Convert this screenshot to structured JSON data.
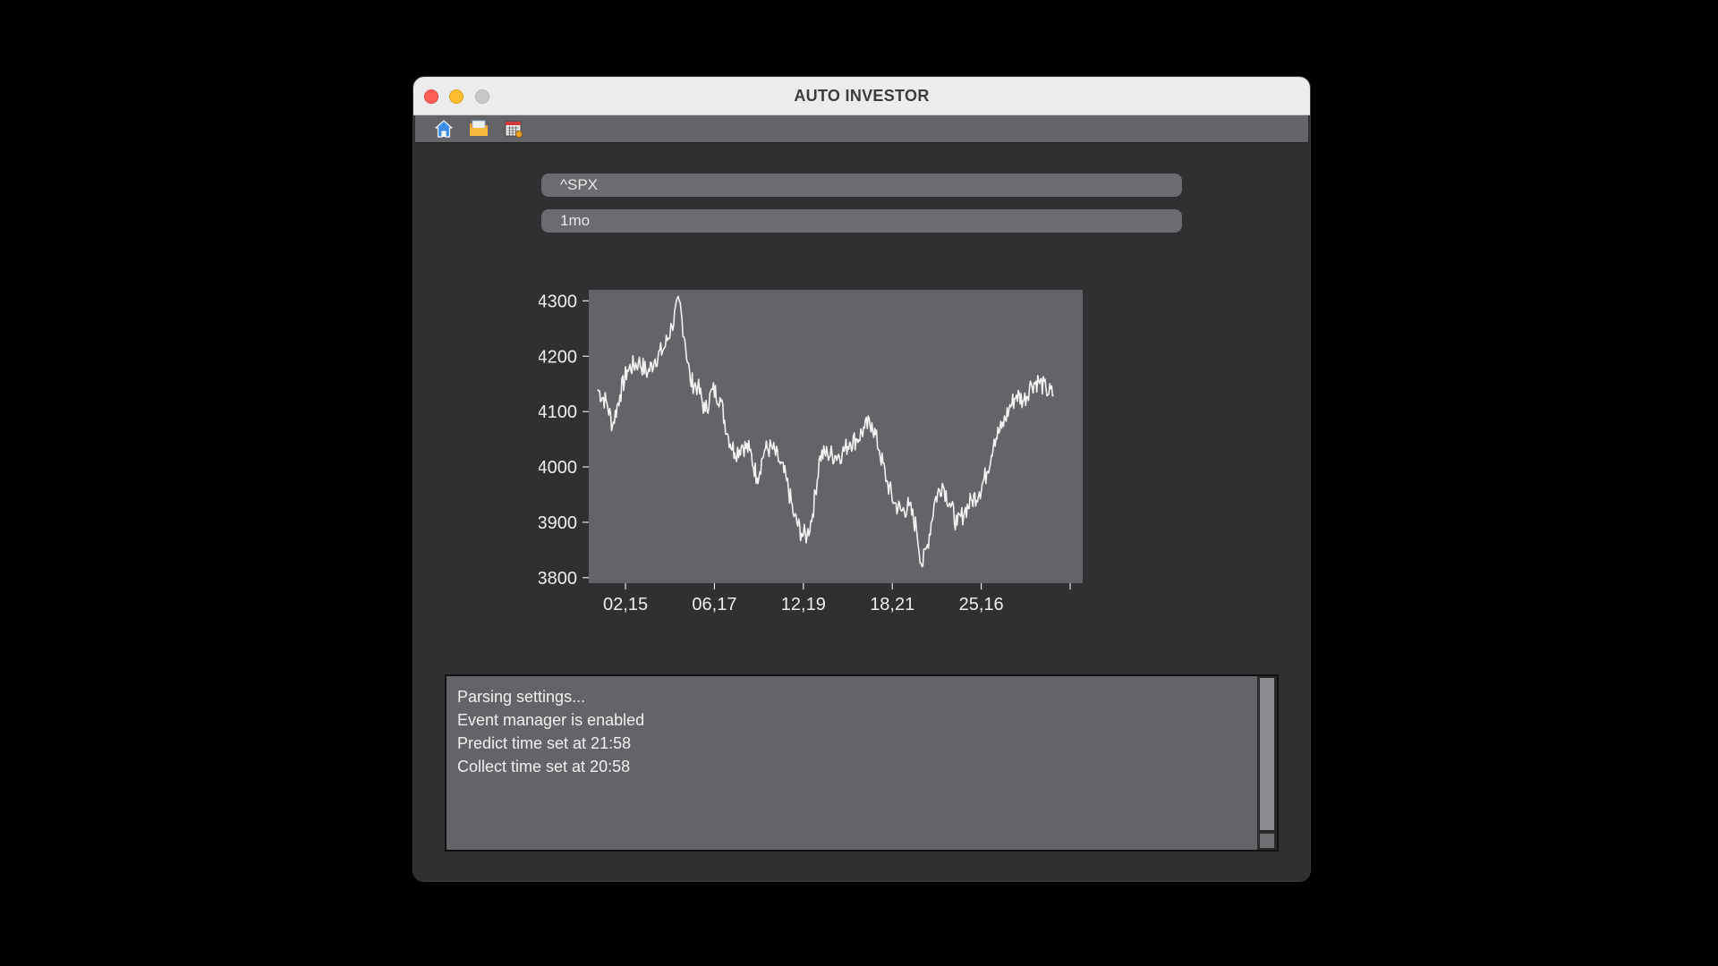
{
  "window": {
    "title": "AUTO INVESTOR"
  },
  "toolbar": {
    "icons": [
      "home-icon",
      "folder-icon",
      "calendar-icon"
    ]
  },
  "inputs": {
    "ticker": "^SPX",
    "period": "1mo"
  },
  "chart_data": {
    "type": "line",
    "title": "",
    "xlabel": "",
    "ylabel": "",
    "ylim": [
      3790,
      4320
    ],
    "yticks": [
      3800,
      3900,
      4000,
      4100,
      4200,
      4300
    ],
    "xticks": [
      {
        "label": "02,15",
        "index": 15
      },
      {
        "label": "06,17",
        "index": 63
      },
      {
        "label": "12,19",
        "index": 111
      },
      {
        "label": "18,21",
        "index": 159
      },
      {
        "label": "25,16",
        "index": 207
      },
      {
        "label": "",
        "index": 255
      }
    ],
    "grid": false,
    "line_color": "#f2f2f2",
    "plot_background": "#636467",
    "series": [
      {
        "keypoints": [
          [
            0,
            4140
          ],
          [
            5,
            4115
          ],
          [
            8,
            4075
          ],
          [
            12,
            4130
          ],
          [
            16,
            4175
          ],
          [
            22,
            4190
          ],
          [
            27,
            4170
          ],
          [
            31,
            4195
          ],
          [
            36,
            4215
          ],
          [
            40,
            4255
          ],
          [
            44,
            4300
          ],
          [
            47,
            4230
          ],
          [
            50,
            4155
          ],
          [
            54,
            4145
          ],
          [
            58,
            4100
          ],
          [
            62,
            4140
          ],
          [
            66,
            4125
          ],
          [
            70,
            4060
          ],
          [
            74,
            4025
          ],
          [
            78,
            4040
          ],
          [
            82,
            4030
          ],
          [
            86,
            3980
          ],
          [
            90,
            4030
          ],
          [
            94,
            4035
          ],
          [
            98,
            4010
          ],
          [
            102,
            3975
          ],
          [
            106,
            3910
          ],
          [
            110,
            3880
          ],
          [
            113,
            3875
          ],
          [
            116,
            3915
          ],
          [
            120,
            4020
          ],
          [
            124,
            4025
          ],
          [
            128,
            4020
          ],
          [
            132,
            4025
          ],
          [
            136,
            4045
          ],
          [
            140,
            4050
          ],
          [
            144,
            4070
          ],
          [
            148,
            4080
          ],
          [
            152,
            4030
          ],
          [
            156,
            3975
          ],
          [
            160,
            3935
          ],
          [
            164,
            3920
          ],
          [
            168,
            3930
          ],
          [
            172,
            3890
          ],
          [
            175,
            3820
          ],
          [
            178,
            3860
          ],
          [
            182,
            3940
          ],
          [
            186,
            3970
          ],
          [
            190,
            3935
          ],
          [
            194,
            3895
          ],
          [
            198,
            3920
          ],
          [
            202,
            3940
          ],
          [
            206,
            3955
          ],
          [
            210,
            3990
          ],
          [
            214,
            4050
          ],
          [
            218,
            4070
          ],
          [
            222,
            4105
          ],
          [
            226,
            4130
          ],
          [
            230,
            4120
          ],
          [
            234,
            4150
          ],
          [
            238,
            4155
          ],
          [
            242,
            4140
          ],
          [
            246,
            4130
          ]
        ]
      }
    ]
  },
  "log": {
    "lines": [
      "Parsing settings...",
      "Event manager is enabled",
      "Predict time set at 21:58",
      "Collect time set at 20:58"
    ]
  }
}
